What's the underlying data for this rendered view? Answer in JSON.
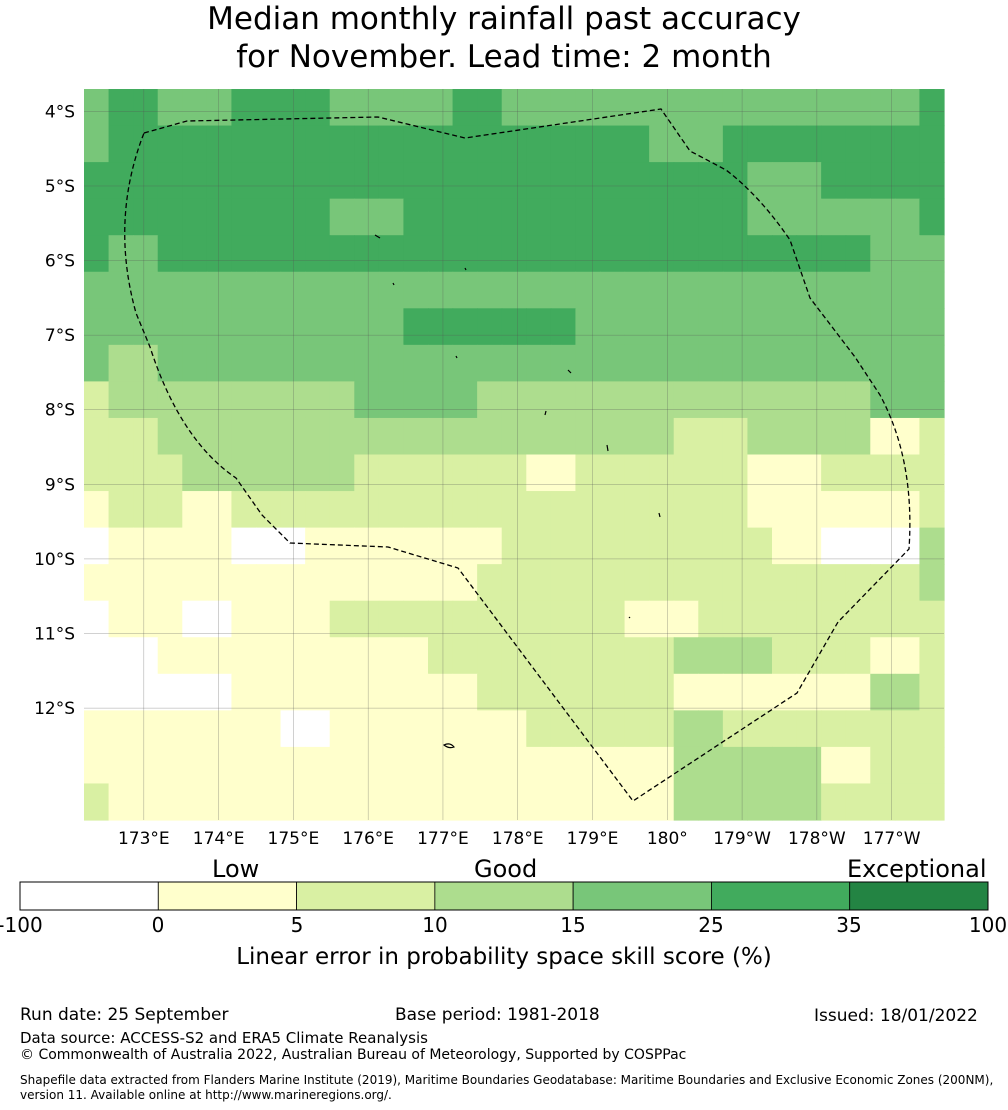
{
  "header": {
    "title_line1": "Median monthly rainfall past accuracy",
    "title_line2": "for November. Lead time: 2 month"
  },
  "chart_data": {
    "type": "heatmap",
    "title": "Median monthly rainfall past accuracy for November. Lead time: 2 month",
    "x_ticks": [
      "173°E",
      "174°E",
      "175°E",
      "176°E",
      "177°E",
      "178°E",
      "179°E",
      "180°",
      "179°W",
      "178°W",
      "177°W"
    ],
    "y_ticks": [
      "4°S",
      "5°S",
      "6°S",
      "7°S",
      "8°S",
      "9°S",
      "10°S",
      "11°S",
      "12°S"
    ],
    "lon_range_east": [
      172.2,
      183.7
    ],
    "lat_range": [
      -3.7,
      -13.5
    ],
    "grid_resolution_deg": 0.83,
    "cells": [
      [
        4,
        5,
        5,
        4,
        4,
        4,
        5,
        5,
        5,
        5,
        4,
        4,
        4,
        4,
        4,
        5,
        5,
        4,
        4,
        4,
        4,
        4,
        4,
        4,
        4,
        4,
        4,
        4,
        4,
        4,
        4,
        4,
        4,
        4,
        5
      ],
      [
        4,
        5,
        5,
        5,
        5,
        5,
        5,
        5,
        5,
        5,
        5,
        5,
        5,
        5,
        5,
        5,
        5,
        5,
        5,
        5,
        5,
        5,
        5,
        4,
        4,
        4,
        5,
        5,
        5,
        5,
        5,
        5,
        5,
        5,
        5
      ],
      [
        5,
        5,
        5,
        5,
        5,
        5,
        5,
        5,
        5,
        5,
        5,
        5,
        5,
        5,
        5,
        5,
        5,
        5,
        5,
        5,
        5,
        5,
        5,
        5,
        5,
        5,
        5,
        4,
        4,
        4,
        5,
        5,
        5,
        5,
        5
      ],
      [
        5,
        5,
        5,
        5,
        5,
        5,
        5,
        5,
        5,
        5,
        4,
        4,
        4,
        5,
        5,
        5,
        5,
        5,
        5,
        5,
        5,
        5,
        5,
        5,
        5,
        5,
        5,
        4,
        4,
        4,
        4,
        4,
        4,
        4,
        5
      ],
      [
        5,
        4,
        4,
        5,
        5,
        5,
        5,
        5,
        5,
        5,
        5,
        5,
        5,
        5,
        5,
        5,
        5,
        5,
        5,
        5,
        5,
        5,
        5,
        5,
        5,
        5,
        5,
        5,
        5,
        5,
        5,
        5,
        4,
        4,
        4
      ],
      [
        4,
        4,
        4,
        4,
        4,
        4,
        4,
        4,
        4,
        4,
        4,
        4,
        4,
        4,
        4,
        4,
        4,
        4,
        4,
        4,
        4,
        4,
        4,
        4,
        4,
        4,
        4,
        4,
        4,
        4,
        4,
        4,
        4,
        4,
        4
      ],
      [
        4,
        4,
        4,
        4,
        4,
        4,
        4,
        4,
        4,
        4,
        4,
        4,
        4,
        5,
        5,
        5,
        5,
        5,
        5,
        5,
        4,
        4,
        4,
        4,
        4,
        4,
        4,
        4,
        4,
        4,
        4,
        4,
        4,
        4,
        4
      ],
      [
        4,
        3,
        3,
        4,
        4,
        4,
        4,
        4,
        4,
        4,
        4,
        4,
        4,
        4,
        4,
        4,
        4,
        4,
        4,
        4,
        4,
        4,
        4,
        4,
        4,
        4,
        4,
        4,
        4,
        4,
        4,
        4,
        4,
        4,
        4
      ],
      [
        2,
        3,
        3,
        3,
        3,
        3,
        3,
        3,
        3,
        3,
        3,
        4,
        4,
        4,
        4,
        4,
        3,
        3,
        3,
        3,
        3,
        3,
        3,
        3,
        3,
        3,
        3,
        3,
        3,
        3,
        3,
        3,
        4,
        4,
        4
      ],
      [
        2,
        2,
        2,
        3,
        3,
        3,
        3,
        3,
        3,
        3,
        3,
        3,
        3,
        3,
        3,
        3,
        3,
        3,
        3,
        3,
        3,
        3,
        3,
        3,
        2,
        2,
        2,
        3,
        3,
        3,
        3,
        3,
        1,
        1,
        2
      ],
      [
        2,
        2,
        2,
        2,
        3,
        3,
        3,
        3,
        3,
        3,
        3,
        2,
        2,
        2,
        2,
        2,
        2,
        2,
        1,
        1,
        2,
        2,
        2,
        2,
        2,
        2,
        2,
        1,
        1,
        1,
        2,
        2,
        2,
        2,
        2
      ],
      [
        1,
        2,
        2,
        2,
        1,
        1,
        2,
        2,
        2,
        2,
        2,
        2,
        2,
        2,
        2,
        2,
        2,
        2,
        2,
        2,
        2,
        2,
        2,
        2,
        2,
        2,
        2,
        1,
        1,
        1,
        1,
        1,
        1,
        1,
        2
      ],
      [
        0,
        1,
        1,
        1,
        1,
        1,
        0,
        0,
        0,
        1,
        1,
        1,
        1,
        1,
        1,
        1,
        1,
        2,
        2,
        2,
        2,
        2,
        2,
        2,
        2,
        2,
        2,
        2,
        1,
        1,
        0,
        0,
        0,
        0,
        3
      ],
      [
        1,
        1,
        1,
        1,
        1,
        1,
        1,
        1,
        1,
        1,
        1,
        1,
        1,
        1,
        1,
        1,
        2,
        2,
        2,
        2,
        2,
        2,
        2,
        2,
        2,
        2,
        2,
        2,
        2,
        2,
        2,
        2,
        2,
        2,
        3
      ],
      [
        0,
        1,
        1,
        1,
        0,
        0,
        1,
        1,
        1,
        1,
        2,
        2,
        2,
        2,
        2,
        2,
        2,
        2,
        2,
        2,
        2,
        2,
        1,
        1,
        1,
        2,
        2,
        2,
        2,
        2,
        2,
        2,
        2,
        2,
        2
      ],
      [
        0,
        0,
        0,
        1,
        1,
        1,
        1,
        1,
        1,
        1,
        1,
        1,
        1,
        1,
        2,
        2,
        2,
        2,
        2,
        2,
        2,
        2,
        2,
        2,
        3,
        3,
        3,
        3,
        2,
        2,
        2,
        2,
        1,
        1,
        2
      ],
      [
        0,
        0,
        0,
        0,
        0,
        0,
        1,
        1,
        1,
        1,
        1,
        1,
        1,
        1,
        1,
        1,
        2,
        2,
        2,
        2,
        2,
        2,
        2,
        2,
        1,
        1,
        1,
        1,
        1,
        1,
        1,
        1,
        3,
        3,
        2
      ],
      [
        1,
        1,
        1,
        1,
        1,
        1,
        1,
        1,
        0,
        0,
        1,
        1,
        1,
        1,
        1,
        1,
        1,
        1,
        2,
        2,
        2,
        2,
        2,
        2,
        3,
        3,
        2,
        2,
        2,
        2,
        2,
        2,
        2,
        2,
        2
      ],
      [
        1,
        1,
        1,
        1,
        1,
        1,
        1,
        1,
        1,
        1,
        1,
        1,
        1,
        1,
        1,
        1,
        1,
        1,
        1,
        1,
        1,
        1,
        1,
        1,
        3,
        3,
        3,
        3,
        3,
        3,
        1,
        1,
        2,
        2,
        2
      ],
      [
        2,
        1,
        1,
        1,
        1,
        1,
        1,
        1,
        1,
        1,
        1,
        1,
        1,
        1,
        1,
        1,
        1,
        1,
        1,
        1,
        1,
        1,
        1,
        1,
        3,
        3,
        3,
        3,
        3,
        3,
        2,
        2,
        2,
        2,
        2
      ]
    ],
    "legend": {
      "categories": [
        "Low",
        "Good",
        "Exceptional"
      ],
      "bounds": [
        "-100",
        "0",
        "5",
        "10",
        "15",
        "25",
        "35",
        "100"
      ],
      "colors": [
        "#ffffff",
        "#ffffcc",
        "#d9f0a3",
        "#addd8e",
        "#78c679",
        "#41ab5d",
        "#238443"
      ],
      "label": "Linear error in probability space skill score (%)"
    }
  },
  "footer": {
    "run_date": "Run date: 25 September",
    "base_period": "Base period: 1981-2018",
    "issued": "Issued: 18/01/2022",
    "data_source": "Data source: ACCESS-S2 and ERA5 Climate Reanalysis",
    "copyright": "© Commonwealth of Australia 2022, Australian Bureau of Meteorology, Supported by COSPPac",
    "shapefile": "Shapefile data extracted from Flanders Marine Institute (2019), Maritime Boundaries Geodatabase: Maritime Boundaries and Exclusive Economic Zones (200NM), version 11. Available online at http://www.marineregions.org/."
  }
}
